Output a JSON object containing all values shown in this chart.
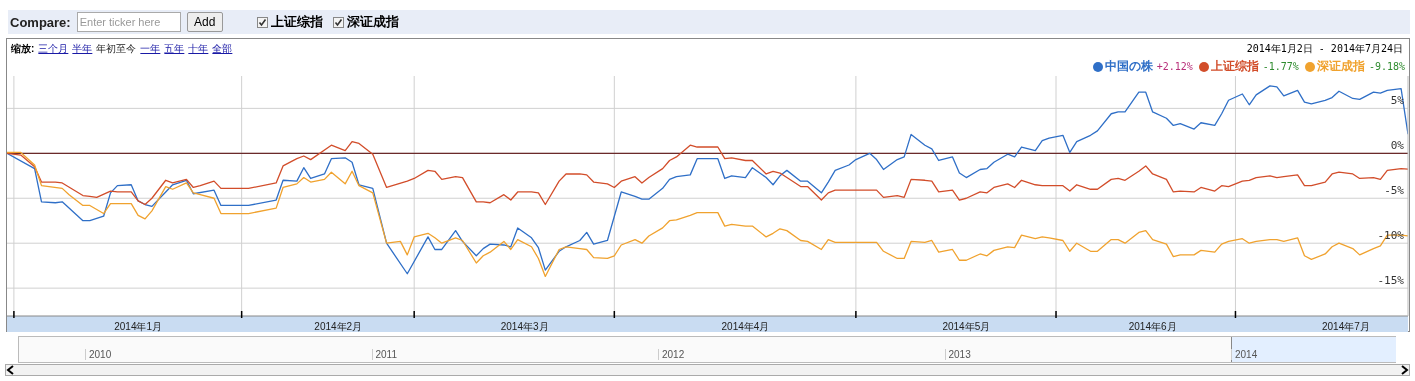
{
  "chart_data": {
    "type": "line",
    "annotations": [
      "Compare:",
      "Enter ticker here",
      "Add",
      "缩放:",
      "三个月",
      "半年",
      "年初至今",
      "一年",
      "五年",
      "十年",
      "全部",
      "2014年1月2日 - 2014年7月24日",
      "+2.12%",
      "-1.77%",
      "-9.18%",
      "2010",
      "2011",
      "2012",
      "2013",
      "2014"
    ],
    "xlim": [
      "2014-01-02",
      "2014-07-24"
    ],
    "xticks": [
      {
        "value": "2014-01-03",
        "label": null
      },
      {
        "value": "2014-01-21",
        "label": "2014年1月"
      },
      {
        "value": "2014-02-05",
        "label": null
      },
      {
        "value": "2014-02-19",
        "label": "2014年2月"
      },
      {
        "value": "2014-03-02",
        "label": null
      },
      {
        "value": "2014-03-18",
        "label": "2014年3月"
      },
      {
        "value": "2014-03-31",
        "label": null
      },
      {
        "value": "2014-04-19",
        "label": "2014年4月"
      },
      {
        "value": "2014-05-05",
        "label": null
      },
      {
        "value": "2014-05-21",
        "label": "2014年5月"
      },
      {
        "value": "2014-06-03",
        "label": null
      },
      {
        "value": "2014-06-17",
        "label": "2014年6月"
      },
      {
        "value": "2014-06-29",
        "label": null
      },
      {
        "value": "2014-07-15",
        "label": "2014年7月"
      }
    ],
    "ylim": [
      -18.1,
      8.6
    ],
    "yticks": [
      {
        "value": -15,
        "label": "-15%"
      },
      {
        "value": -10,
        "label": "-10%"
      },
      {
        "value": -5,
        "label": "-5%"
      },
      {
        "value": 0,
        "label": "0%"
      },
      {
        "value": 5,
        "label": "5%"
      }
    ],
    "grid": true,
    "legend": "top right",
    "ref_lines": [
      {
        "axis": "y",
        "value": 0,
        "color": "#6b2a2a"
      }
    ],
    "series": [
      {
        "name": "中国の株",
        "color": "#2f6fc7",
        "x": [
          "2014-01-02",
          "2014-01-06",
          "2014-01-07",
          "2014-01-09",
          "2014-01-10",
          "2014-01-13",
          "2014-01-14",
          "2014-01-16",
          "2014-01-17",
          "2014-01-18",
          "2014-01-20",
          "2014-01-21",
          "2014-01-22",
          "2014-01-23",
          "2014-01-25",
          "2014-01-26",
          "2014-01-28",
          "2014-01-29",
          "2014-02-01",
          "2014-02-02",
          "2014-02-06",
          "2014-02-10",
          "2014-02-11",
          "2014-02-13",
          "2014-02-14",
          "2014-02-15",
          "2014-02-17",
          "2014-02-18",
          "2014-02-20",
          "2014-02-21",
          "2014-02-22",
          "2014-02-24",
          "2014-02-26",
          "2014-03-01",
          "2014-03-04",
          "2014-03-05",
          "2014-03-06",
          "2014-03-08",
          "2014-03-09",
          "2014-03-11",
          "2014-03-12",
          "2014-03-13",
          "2014-03-15",
          "2014-03-16",
          "2014-03-17",
          "2014-03-19",
          "2014-03-20",
          "2014-03-21",
          "2014-03-23",
          "2014-03-24",
          "2014-03-26",
          "2014-03-27",
          "2014-03-28",
          "2014-03-30",
          "2014-03-31",
          "2014-04-01",
          "2014-04-03",
          "2014-04-04",
          "2014-04-05",
          "2014-04-07",
          "2014-04-08",
          "2014-04-09",
          "2014-04-11",
          "2014-04-12",
          "2014-04-13",
          "2014-04-15",
          "2014-04-16",
          "2014-04-17",
          "2014-04-19",
          "2014-04-20",
          "2014-04-22",
          "2014-04-23",
          "2014-04-24",
          "2014-04-25",
          "2014-04-27",
          "2014-04-28",
          "2014-04-30",
          "2014-05-01",
          "2014-05-02",
          "2014-05-04",
          "2014-05-05",
          "2014-05-07",
          "2014-05-08",
          "2014-05-09",
          "2014-05-11",
          "2014-05-12",
          "2014-05-13",
          "2014-05-15",
          "2014-05-16",
          "2014-05-17",
          "2014-05-19",
          "2014-05-20",
          "2014-05-21",
          "2014-05-23",
          "2014-05-24",
          "2014-05-25",
          "2014-05-27",
          "2014-05-28",
          "2014-05-29",
          "2014-05-31",
          "2014-06-01",
          "2014-06-02",
          "2014-06-04",
          "2014-06-05",
          "2014-06-06",
          "2014-06-08",
          "2014-06-09",
          "2014-06-11",
          "2014-06-12",
          "2014-06-13",
          "2014-06-15",
          "2014-06-16",
          "2014-06-17",
          "2014-06-19",
          "2014-06-20",
          "2014-06-21",
          "2014-06-23",
          "2014-06-24",
          "2014-06-26",
          "2014-06-27",
          "2014-06-28",
          "2014-06-30",
          "2014-07-01",
          "2014-07-02",
          "2014-07-04",
          "2014-07-05",
          "2014-07-06",
          "2014-07-08",
          "2014-07-09",
          "2014-07-10",
          "2014-07-12",
          "2014-07-13",
          "2014-07-14",
          "2014-07-16",
          "2014-07-17",
          "2014-07-19",
          "2014-07-20",
          "2014-07-21",
          "2014-07-23",
          "2014-07-24"
        ],
        "values": [
          0,
          -1.7,
          -5.4,
          -5.5,
          -5.4,
          -7.5,
          -7.5,
          -7.0,
          -4.4,
          -3.6,
          -3.5,
          -5.3,
          -5.7,
          -5.9,
          -4.3,
          -3.5,
          -3.0,
          -4.5,
          -4.1,
          -5.8,
          -5.8,
          -5.2,
          -3.0,
          -3.1,
          -1.6,
          -2.8,
          -2.3,
          -0.6,
          -0.5,
          -1.0,
          -3.5,
          -3.9,
          -10.0,
          -13.4,
          -9.3,
          -10.7,
          -10.7,
          -8.6,
          -9.8,
          -11.4,
          -10.6,
          -10.1,
          -10.2,
          -10.4,
          -8.3,
          -9.4,
          -10.5,
          -13.0,
          -10.9,
          -10.4,
          -9.7,
          -8.8,
          -10.1,
          -9.7,
          -7.0,
          -4.3,
          -4.8,
          -5.1,
          -5.1,
          -3.9,
          -2.9,
          -2.6,
          -2.4,
          -0.6,
          -0.6,
          -0.6,
          -2.8,
          -2.5,
          -2.7,
          -1.6,
          -2.7,
          -3.5,
          -2.5,
          -1.9,
          -3.1,
          -3.1,
          -4.4,
          -3.2,
          -1.9,
          -1.3,
          -0.7,
          0,
          -0.7,
          -1.8,
          -0.7,
          -0.4,
          2.1,
          0.9,
          0.5,
          -0.8,
          -0.4,
          -2.2,
          -2.7,
          -1.8,
          -1.7,
          -1.0,
          -0.1,
          -0.4,
          0.7,
          0.3,
          1.4,
          1.7,
          2.0,
          0.1,
          1.3,
          2.0,
          2.5,
          4.4,
          4.6,
          4.6,
          6.8,
          6.8,
          4.6,
          3.9,
          3.1,
          3.3,
          2.7,
          3.4,
          3.1,
          4.4,
          5.9,
          6.6,
          5.4,
          6.5,
          7.5,
          7.4,
          6.4,
          7.0,
          5.7,
          5.5,
          5.9,
          6.2,
          6.9,
          6.1,
          6.0,
          6.8,
          6.7,
          7.0,
          7.2,
          2.12
        ]
      },
      {
        "name": "上证综指",
        "color": "#d24d2a",
        "x": [
          "2014-01-02",
          "2014-01-04",
          "2014-01-06",
          "2014-01-07",
          "2014-01-09",
          "2014-01-10",
          "2014-01-13",
          "2014-01-14",
          "2014-01-15",
          "2014-01-17",
          "2014-01-18",
          "2014-01-20",
          "2014-01-21",
          "2014-01-22",
          "2014-01-23",
          "2014-01-25",
          "2014-01-26",
          "2014-01-28",
          "2014-01-29",
          "2014-01-30",
          "2014-02-01",
          "2014-02-02",
          "2014-02-06",
          "2014-02-10",
          "2014-02-11",
          "2014-02-13",
          "2014-02-14",
          "2014-02-15",
          "2014-02-18",
          "2014-02-20",
          "2014-02-21",
          "2014-02-22",
          "2014-02-24",
          "2014-02-26",
          "2014-03-01",
          "2014-03-02",
          "2014-03-04",
          "2014-03-05",
          "2014-03-06",
          "2014-03-08",
          "2014-03-09",
          "2014-03-11",
          "2014-03-12",
          "2014-03-13",
          "2014-03-15",
          "2014-03-16",
          "2014-03-17",
          "2014-03-19",
          "2014-03-20",
          "2014-03-21",
          "2014-03-23",
          "2014-03-24",
          "2014-03-26",
          "2014-03-27",
          "2014-03-28",
          "2014-03-30",
          "2014-03-31",
          "2014-04-01",
          "2014-04-03",
          "2014-04-04",
          "2014-04-05",
          "2014-04-07",
          "2014-04-08",
          "2014-04-09",
          "2014-04-11",
          "2014-04-12",
          "2014-04-13",
          "2014-04-15",
          "2014-04-16",
          "2014-04-17",
          "2014-04-19",
          "2014-04-20",
          "2014-04-22",
          "2014-04-23",
          "2014-04-24",
          "2014-04-25",
          "2014-04-27",
          "2014-04-28",
          "2014-04-30",
          "2014-05-01",
          "2014-05-02",
          "2014-05-04",
          "2014-05-05",
          "2014-05-08",
          "2014-05-09",
          "2014-05-11",
          "2014-05-12",
          "2014-05-13",
          "2014-05-15",
          "2014-05-16",
          "2014-05-17",
          "2014-05-19",
          "2014-05-20",
          "2014-05-21",
          "2014-05-23",
          "2014-05-24",
          "2014-05-25",
          "2014-05-27",
          "2014-05-28",
          "2014-05-29",
          "2014-05-31",
          "2014-06-01",
          "2014-06-04",
          "2014-06-05",
          "2014-06-06",
          "2014-06-08",
          "2014-06-09",
          "2014-06-11",
          "2014-06-12",
          "2014-06-13",
          "2014-06-15",
          "2014-06-16",
          "2014-06-17",
          "2014-06-19",
          "2014-06-20",
          "2014-06-21",
          "2014-06-23",
          "2014-06-24",
          "2014-06-26",
          "2014-06-27",
          "2014-06-28",
          "2014-06-30",
          "2014-07-01",
          "2014-07-02",
          "2014-07-04",
          "2014-07-05",
          "2014-07-06",
          "2014-07-08",
          "2014-07-09",
          "2014-07-10",
          "2014-07-12",
          "2014-07-13",
          "2014-07-14",
          "2014-07-16",
          "2014-07-17",
          "2014-07-19",
          "2014-07-20",
          "2014-07-21",
          "2014-07-23",
          "2014-07-24"
        ],
        "values": [
          0,
          -0.2,
          -1.5,
          -3.2,
          -3.2,
          -3.3,
          -4.7,
          -4.8,
          -4.9,
          -4.2,
          -4.3,
          -4.3,
          -5.3,
          -5.7,
          -5.0,
          -3.0,
          -3.3,
          -2.9,
          -3.8,
          -3.6,
          -3.1,
          -3.9,
          -3.9,
          -3.3,
          -1.4,
          -0.6,
          -0.3,
          -0.7,
          0.9,
          0.3,
          1.3,
          1.1,
          -0.1,
          -3.8,
          -3.1,
          -2.8,
          -1.9,
          -2.0,
          -2.9,
          -2.6,
          -2.7,
          -5.4,
          -5.4,
          -5.5,
          -4.6,
          -5.2,
          -4.3,
          -4.3,
          -4.4,
          -5.7,
          -3.1,
          -2.3,
          -2.3,
          -2.4,
          -3.2,
          -3.4,
          -3.8,
          -3.1,
          -2.6,
          -3.3,
          -2.7,
          -1.7,
          -0.8,
          -0.4,
          0.9,
          0.7,
          0.7,
          0.7,
          -0.6,
          -0.5,
          -0.8,
          -0.8,
          -2.3,
          -2.0,
          -2.2,
          -2.7,
          -3.7,
          -3.7,
          -5.2,
          -4.4,
          -4.1,
          -4.1,
          -4.1,
          -4.1,
          -4.9,
          -4.7,
          -4.9,
          -2.9,
          -3.0,
          -3.1,
          -4.3,
          -4.1,
          -5.2,
          -5.0,
          -4.3,
          -4.4,
          -3.8,
          -3.4,
          -3.8,
          -3.0,
          -3.5,
          -3.6,
          -3.6,
          -4.2,
          -3.5,
          -4.0,
          -4.0,
          -2.9,
          -2.8,
          -3.0,
          -2.0,
          -1.4,
          -2.3,
          -2.9,
          -4.3,
          -4.2,
          -4.3,
          -3.8,
          -4.2,
          -3.6,
          -3.7,
          -3.1,
          -3.0,
          -2.7,
          -2.5,
          -2.7,
          -2.6,
          -2.4,
          -3.6,
          -3.6,
          -3.2,
          -2.3,
          -2.1,
          -2.3,
          -2.8,
          -2.7,
          -2.9,
          -1.9,
          -1.7,
          -1.77
        ]
      },
      {
        "name": "深证成指",
        "color": "#f0a22e",
        "x": [
          "2014-01-02",
          "2014-01-04",
          "2014-01-06",
          "2014-01-07",
          "2014-01-10",
          "2014-01-11",
          "2014-01-13",
          "2014-01-14",
          "2014-01-16",
          "2014-01-17",
          "2014-01-20",
          "2014-01-21",
          "2014-01-22",
          "2014-01-23",
          "2014-01-25",
          "2014-01-26",
          "2014-01-28",
          "2014-01-29",
          "2014-01-30",
          "2014-02-01",
          "2014-02-02",
          "2014-02-06",
          "2014-02-10",
          "2014-02-11",
          "2014-02-13",
          "2014-02-14",
          "2014-02-15",
          "2014-02-17",
          "2014-02-18",
          "2014-02-20",
          "2014-02-21",
          "2014-02-22",
          "2014-02-24",
          "2014-02-26",
          "2014-02-28",
          "2014-03-01",
          "2014-03-02",
          "2014-03-04",
          "2014-03-05",
          "2014-03-06",
          "2014-03-08",
          "2014-03-09",
          "2014-03-11",
          "2014-03-12",
          "2014-03-13",
          "2014-03-15",
          "2014-03-16",
          "2014-03-17",
          "2014-03-19",
          "2014-03-20",
          "2014-03-21",
          "2014-03-23",
          "2014-03-24",
          "2014-03-26",
          "2014-03-27",
          "2014-03-28",
          "2014-03-30",
          "2014-03-31",
          "2014-04-01",
          "2014-04-03",
          "2014-04-04",
          "2014-04-05",
          "2014-04-07",
          "2014-04-08",
          "2014-04-09",
          "2014-04-11",
          "2014-04-12",
          "2014-04-13",
          "2014-04-15",
          "2014-04-16",
          "2014-04-17",
          "2014-04-19",
          "2014-04-20",
          "2014-04-22",
          "2014-04-23",
          "2014-04-24",
          "2014-04-25",
          "2014-04-27",
          "2014-04-28",
          "2014-04-30",
          "2014-05-01",
          "2014-05-02",
          "2014-05-05",
          "2014-05-08",
          "2014-05-09",
          "2014-05-11",
          "2014-05-12",
          "2014-05-13",
          "2014-05-15",
          "2014-05-16",
          "2014-05-17",
          "2014-05-19",
          "2014-05-20",
          "2014-05-21",
          "2014-05-23",
          "2014-05-24",
          "2014-05-25",
          "2014-05-27",
          "2014-05-28",
          "2014-05-29",
          "2014-05-31",
          "2014-06-01",
          "2014-06-02",
          "2014-06-04",
          "2014-06-05",
          "2014-06-06",
          "2014-06-08",
          "2014-06-09",
          "2014-06-11",
          "2014-06-12",
          "2014-06-13",
          "2014-06-15",
          "2014-06-16",
          "2014-06-17",
          "2014-06-19",
          "2014-06-20",
          "2014-06-21",
          "2014-06-23",
          "2014-06-24",
          "2014-06-26",
          "2014-06-27",
          "2014-06-28",
          "2014-06-30",
          "2014-07-01",
          "2014-07-02",
          "2014-07-04",
          "2014-07-05",
          "2014-07-06",
          "2014-07-08",
          "2014-07-09",
          "2014-07-10",
          "2014-07-12",
          "2014-07-13",
          "2014-07-14",
          "2014-07-16",
          "2014-07-17",
          "2014-07-19",
          "2014-07-20",
          "2014-07-21",
          "2014-07-23",
          "2014-07-24"
        ],
        "values": [
          0.1,
          0.1,
          -1.3,
          -3.6,
          -3.9,
          -4.6,
          -5.8,
          -5.8,
          -6.7,
          -5.6,
          -5.6,
          -6.9,
          -7.3,
          -6.4,
          -3.7,
          -4.0,
          -3.3,
          -4.4,
          -4.6,
          -5.0,
          -6.7,
          -6.7,
          -6.1,
          -3.8,
          -3.4,
          -2.7,
          -3.2,
          -2.9,
          -2.1,
          -3.4,
          -2.0,
          -3.6,
          -4.4,
          -10.0,
          -9.8,
          -11.3,
          -9.3,
          -8.9,
          -9.4,
          -10.0,
          -9.4,
          -9.7,
          -12.2,
          -11.4,
          -11.0,
          -9.8,
          -10.7,
          -9.6,
          -10.4,
          -11.7,
          -13.7,
          -10.7,
          -10.4,
          -10.6,
          -10.7,
          -11.6,
          -11.7,
          -11.4,
          -10.2,
          -9.6,
          -10.0,
          -9.2,
          -8.3,
          -7.5,
          -7.4,
          -6.9,
          -6.6,
          -6.6,
          -6.6,
          -8.1,
          -7.9,
          -8.1,
          -8.1,
          -9.3,
          -8.9,
          -8.4,
          -8.6,
          -9.7,
          -9.8,
          -10.7,
          -9.6,
          -9.9,
          -9.9,
          -9.9,
          -10.9,
          -11.7,
          -11.7,
          -9.8,
          -9.9,
          -9.7,
          -11.0,
          -10.7,
          -11.9,
          -11.9,
          -11.2,
          -11.4,
          -10.8,
          -10.4,
          -10.5,
          -9.1,
          -9.5,
          -9.3,
          -9.4,
          -9.7,
          -10.9,
          -10.0,
          -10.9,
          -10.9,
          -9.6,
          -9.6,
          -10.0,
          -8.8,
          -8.6,
          -9.6,
          -10.1,
          -11.5,
          -11.3,
          -11.3,
          -10.8,
          -11.0,
          -10.1,
          -9.8,
          -9.5,
          -10.0,
          -9.8,
          -9.6,
          -9.6,
          -9.8,
          -9.4,
          -11.4,
          -11.8,
          -11.2,
          -10.4,
          -10.0,
          -10.6,
          -11.3,
          -10.6,
          -10.3,
          -9.1,
          -9.1,
          -9.18
        ]
      }
    ]
  }
}
